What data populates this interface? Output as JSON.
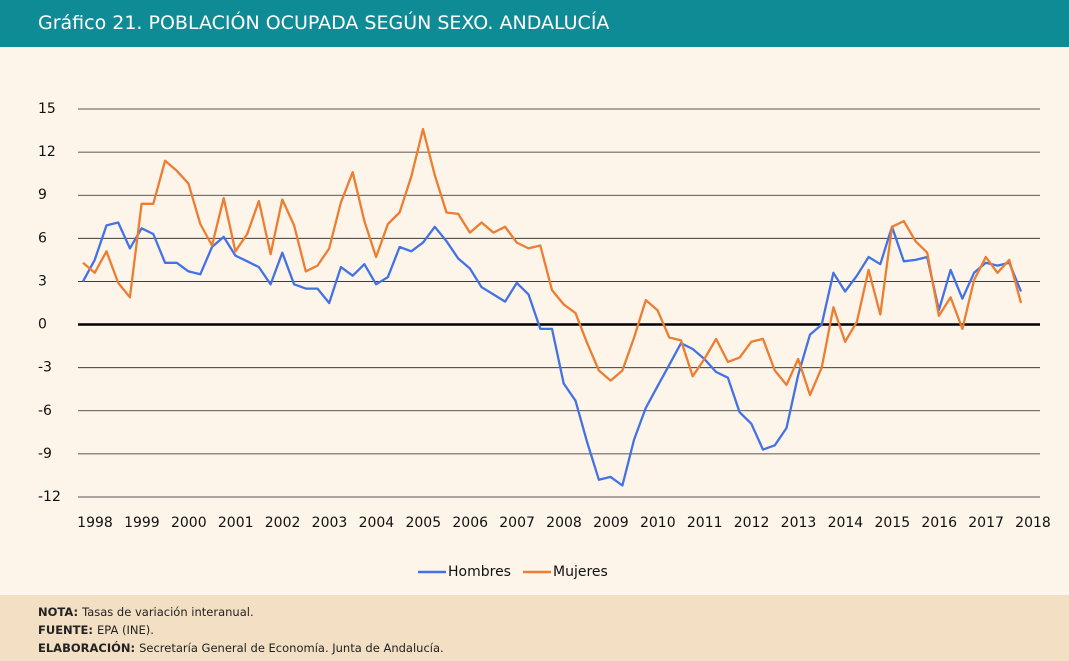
{
  "chart_data": {
    "type": "line",
    "title": "Gráfico 21. POBLACIÓN OCUPADA SEGÚN SEXO. ANDALUCÍA",
    "categories": [
      "1998",
      null,
      null,
      null,
      "1999",
      null,
      null,
      null,
      "2000",
      null,
      null,
      null,
      "2001",
      null,
      null,
      null,
      "2002",
      null,
      null,
      null,
      "2003",
      null,
      null,
      null,
      "2004",
      null,
      null,
      null,
      "2005",
      null,
      null,
      null,
      "2006",
      null,
      null,
      null,
      "2007",
      null,
      null,
      null,
      "2008",
      null,
      null,
      null,
      "2009",
      null,
      null,
      null,
      "2010",
      null,
      null,
      null,
      "2011",
      null,
      null,
      null,
      "2012",
      null,
      null,
      null,
      "2013",
      null,
      null,
      null,
      "2014",
      null,
      null,
      null,
      "2015",
      null,
      null,
      null,
      "2016",
      null,
      null,
      null,
      "2017",
      null,
      null,
      null,
      "2018"
    ],
    "series": [
      {
        "name": "Hombres",
        "color": "#4472e6",
        "values": [
          3.0,
          4.5,
          6.9,
          7.1,
          5.3,
          6.7,
          6.3,
          4.3,
          4.3,
          3.7,
          3.5,
          5.4,
          6.1,
          4.8,
          4.4,
          4.0,
          2.8,
          5.0,
          2.8,
          2.5,
          2.5,
          1.5,
          4.0,
          3.4,
          4.2,
          2.8,
          3.3,
          5.4,
          5.1,
          5.7,
          6.8,
          5.8,
          4.6,
          3.9,
          2.6,
          2.1,
          1.6,
          2.9,
          2.1,
          -0.3,
          -0.3,
          -4.1,
          -5.3,
          -8.2,
          -10.8,
          -10.6,
          -11.2,
          -8.0,
          -5.8,
          -4.3,
          -2.8,
          -1.3,
          -1.7,
          -2.4,
          -3.3,
          -3.7,
          -6.1,
          -6.9,
          -8.7,
          -8.4,
          -7.2,
          -3.5,
          -0.7,
          0.0,
          3.6,
          2.3,
          3.4,
          4.7,
          4.2,
          6.8,
          4.4,
          4.5,
          4.7,
          1.0,
          3.8,
          1.8,
          3.6,
          4.3,
          4.1,
          4.3,
          2.3
        ]
      },
      {
        "name": "Mujeres",
        "color": "#ed7d31",
        "values": [
          4.3,
          3.6,
          5.1,
          2.9,
          1.9,
          8.4,
          8.4,
          11.4,
          10.7,
          9.8,
          7.0,
          5.5,
          8.8,
          5.1,
          6.3,
          8.6,
          4.9,
          8.7,
          6.9,
          3.7,
          4.1,
          5.3,
          8.5,
          10.6,
          7.2,
          4.7,
          7.0,
          7.8,
          10.3,
          13.6,
          10.4,
          7.8,
          7.7,
          6.4,
          7.1,
          6.4,
          6.8,
          5.7,
          5.3,
          5.5,
          2.4,
          1.4,
          0.8,
          -1.3,
          -3.2,
          -3.9,
          -3.2,
          -0.9,
          1.7,
          1.0,
          -0.9,
          -1.1,
          -3.6,
          -2.4,
          -1.0,
          -2.6,
          -2.3,
          -1.2,
          -1.0,
          -3.2,
          -4.2,
          -2.4,
          -4.9,
          -3.0,
          1.2,
          -1.2,
          0.2,
          3.8,
          0.7,
          6.8,
          7.2,
          5.8,
          5.0,
          0.6,
          1.9,
          -0.3,
          3.1,
          4.7,
          3.6,
          4.5,
          1.5
        ]
      }
    ],
    "ylim": [
      -12,
      15
    ],
    "yticks": [
      -12,
      -9,
      -6,
      -3,
      0,
      3,
      6,
      9,
      12,
      15
    ],
    "grid": true,
    "legend": "bottom"
  },
  "notes": [
    {
      "label": "NOTA:",
      "text": "Tasas de variación interanual."
    },
    {
      "label": "FUENTE:",
      "text": "EPA (INE)."
    },
    {
      "label": "ELABORACIÓN:",
      "text": "Secretaría General de Economía. Junta de Andalucía."
    }
  ]
}
